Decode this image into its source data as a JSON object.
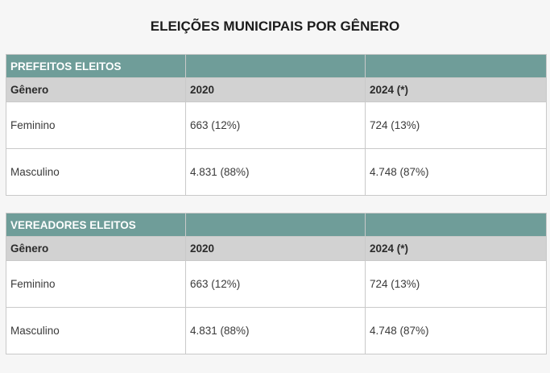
{
  "page": {
    "title": "ELEIÇÕES MUNICIPAIS POR GÊNERO"
  },
  "colors": {
    "page_background": "#f6f6f6",
    "band_background": "#6f9d99",
    "band_text": "#ffffff",
    "header_background": "#d2d2d2",
    "border": "#c9c9c9",
    "body_text": "#3a3a3a",
    "title_text": "#1c1c1c"
  },
  "tables": [
    {
      "title": "PREFEITOS ELEITOS",
      "columns": [
        "Gênero",
        "2020",
        "2024 (*)"
      ],
      "rows": [
        [
          "Feminino",
          "663 (12%)",
          "724 (13%)"
        ],
        [
          "Masculino",
          "4.831 (88%)",
          "4.748 (87%)"
        ]
      ]
    },
    {
      "title": "VEREADORES ELEITOS",
      "columns": [
        "Gênero",
        "2020",
        "2024 (*)"
      ],
      "rows": [
        [
          "Feminino",
          "663 (12%)",
          "724 (13%)"
        ],
        [
          "Masculino",
          "4.831 (88%)",
          "4.748 (87%)"
        ]
      ]
    }
  ]
}
